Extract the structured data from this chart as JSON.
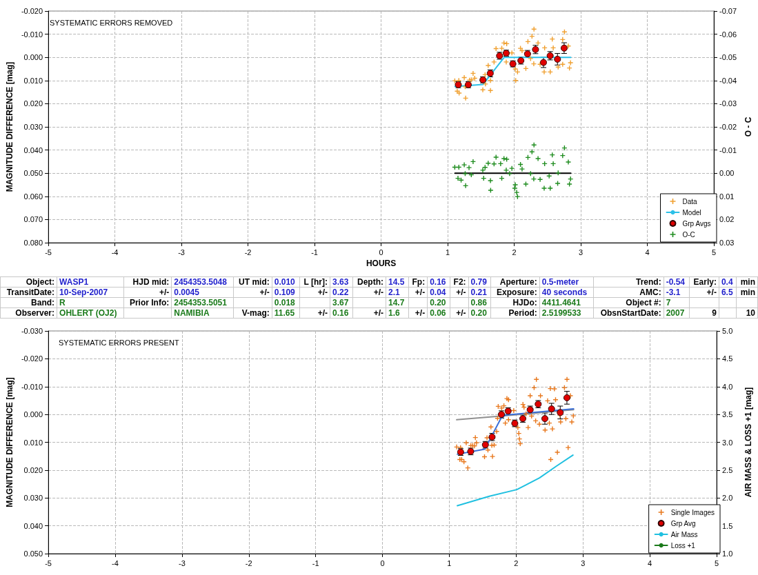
{
  "chart_data": [
    {
      "type": "scatter",
      "title": "SYSTEMATIC ERRORS REMOVED",
      "xlabel": "HOURS",
      "ylabel": "MAGNITUDE DIFFERENCE [mag]",
      "y2label": "O - C",
      "xlim": [
        -5,
        5
      ],
      "xticks": [
        -5,
        -4,
        -3,
        -2,
        -1,
        0,
        1,
        2,
        3,
        4,
        5
      ],
      "ylim": [
        0.08,
        -0.02
      ],
      "yticks": [
        {
          "value": -0.02,
          "label": "-0.020"
        },
        {
          "value": -0.01,
          "label": "-0.010"
        },
        {
          "value": 0,
          "label": "0.000"
        },
        {
          "value": 0.01,
          "label": "0.010"
        },
        {
          "value": 0.02,
          "label": "0.020"
        },
        {
          "value": 0.03,
          "label": "0.030"
        },
        {
          "value": 0.04,
          "label": "0.040"
        },
        {
          "value": 0.05,
          "label": "0.050"
        },
        {
          "value": 0.06,
          "label": "0.060"
        },
        {
          "value": 0.07,
          "label": "0.070"
        },
        {
          "value": 0.08,
          "label": "0.080"
        }
      ],
      "y2lim": [
        0.03,
        -0.07
      ],
      "y2ticks": [
        -0.07,
        -0.06,
        -0.05,
        -0.04,
        -0.03,
        -0.02,
        -0.01,
        {
          "value": 0,
          "label": "0.00"
        },
        0.01,
        0.02,
        0.03
      ],
      "grid": true,
      "legend": "bottom right",
      "series": [
        {
          "name": "Data",
          "type": "scatter",
          "marker": "cross",
          "color": "#f0a030",
          "x": [
            1.107,
            1.168,
            1.249,
            1.328,
            1.382,
            1.406,
            1.355,
            1.144,
            1.172,
            1.27,
            1.263,
            1.528,
            1.562,
            1.568,
            1.609,
            1.643,
            1.643,
            1.697,
            1.727,
            1.813,
            1.846,
            1.887,
            1.88,
            1.965,
            2.016,
            2.05,
            2.022,
            2.094,
            2.118,
            2.175,
            2.206,
            2.246,
            2.267,
            2.297,
            2.358,
            2.294,
            2.389,
            2.457,
            2.45,
            2.541,
            2.572,
            2.586,
            2.66,
            2.728,
            2.755,
            2.813,
            2.846,
            2.83,
            2.728
          ],
          "values": [
            0.0101,
            0.01,
            0.0087,
            0.0098,
            0.0069,
            0.009,
            0.0097,
            0.0146,
            0.0154,
            0.0176,
            0.0127,
            0.014,
            0.0075,
            0.0115,
            0.0035,
            0.01,
            0.0143,
            0.002,
            -0.0038,
            -0.0039,
            -0.0062,
            -0.0059,
            0.002,
            -0.0019,
            0.005,
            0.0063,
            0.01,
            -0.0039,
            -0.0029,
            0.0048,
            -0.0068,
            0.0005,
            -0.0091,
            -0.0122,
            -0.0062,
            0.0028,
            0.003,
            -0.0041,
            0.0063,
            0.0063,
            -0.0079,
            -0.0041,
            0.0042,
            -0.0077,
            -0.011,
            -0.0049,
            0.0023,
            0.0046,
            0.003
          ]
        },
        {
          "name": "Model",
          "type": "line",
          "marker": "none",
          "color": "#2cc0e8",
          "x": [
            1.11,
            1.53,
            1.85,
            2.85
          ],
          "values": [
            0.0126,
            0.0117,
            0.0,
            0.0
          ]
        },
        {
          "name": "Grp Avgs",
          "type": "scatter",
          "marker": "circle",
          "color": "#e00000",
          "x": [
            1.16,
            1.31,
            1.53,
            1.64,
            1.78,
            1.88,
            1.98,
            2.1,
            2.2,
            2.32,
            2.44,
            2.54,
            2.65,
            2.75
          ],
          "values": [
            0.0118,
            0.0118,
            0.0097,
            0.0069,
            -0.0007,
            -0.0018,
            0.0028,
            0.0014,
            -0.0015,
            -0.0034,
            0.0022,
            -0.0007,
            0.0008,
            -0.004
          ],
          "errors": [
            0.0013,
            0.0013,
            0.0013,
            0.0015,
            0.0015,
            0.0013,
            0.0013,
            0.0015,
            0.0015,
            0.0018,
            0.0022,
            0.0018,
            0.0025,
            0.0023
          ]
        },
        {
          "name": "O-C",
          "type": "scatter",
          "marker": "cross",
          "axis": "y2",
          "color": "#1e8c1e",
          "x": [
            1.107,
            1.168,
            1.249,
            1.155,
            1.202,
            1.27,
            1.263,
            1.321,
            1.382,
            1.355,
            1.528,
            1.541,
            1.562,
            1.609,
            1.643,
            1.646,
            1.697,
            1.727,
            1.796,
            1.813,
            1.846,
            1.887,
            1.88,
            1.931,
            1.965,
            2.016,
            2.009,
            2.037,
            2.05,
            2.094,
            2.118,
            2.175,
            2.206,
            2.246,
            2.267,
            2.297,
            2.358,
            2.294,
            2.389,
            2.457,
            2.45,
            2.541,
            2.572,
            2.586,
            2.66,
            2.728,
            2.755,
            2.813,
            2.846,
            2.83,
            2.653,
            2.525
          ],
          "values": [
            -0.0026,
            -0.0026,
            -0.0036,
            0.0022,
            0.003,
            0.0054,
            0.0002,
            -0.0024,
            -0.005,
            0.0007,
            -0.0013,
            0.0022,
            -0.0025,
            -0.0043,
            0.0032,
            0.0074,
            -0.004,
            -0.0069,
            -0.0041,
            0.0022,
            -0.0063,
            -0.006,
            -0.0013,
            0.0002,
            -0.0021,
            0.005,
            0.0065,
            0.0083,
            0.0101,
            -0.0038,
            -0.0018,
            0.0047,
            -0.0068,
            0.0002,
            -0.0092,
            -0.0122,
            -0.0063,
            0.0025,
            0.0027,
            -0.0041,
            0.0065,
            0.0065,
            -0.0079,
            -0.0041,
            -0.0001,
            -0.0076,
            -0.0109,
            -0.0048,
            0.0025,
            0.0047,
            0.0044,
            0.0012
          ]
        },
        {
          "type": "line",
          "marker": "none",
          "axis": "y2",
          "color": "#000000",
          "x": [
            1.11,
            2.85
          ],
          "values": [
            0,
            0
          ]
        }
      ]
    },
    {
      "type": "other",
      "colors": [
        "#1f1fcc",
        "#1f1fcc",
        "#1a7a1a",
        "#1a7a1a"
      ],
      "cell_labels": [
        [
          "Object:",
          "WASP1",
          "HJD mid:",
          "2454353.5048",
          "UT mid:",
          "0.010",
          "L [hr]:",
          "3.63",
          "Depth:",
          "14.5",
          "Fp:",
          "0.16",
          "F2:",
          "0.79",
          "Aperture:",
          "0.5-meter",
          "Trend:",
          "-0.54",
          "Early:",
          "0.4",
          "min"
        ],
        [
          "TransitDate:",
          "10-Sep-2007",
          "+/-",
          "0.0045",
          "+/-",
          "0.109",
          "+/-",
          "0.22",
          "+/-",
          "2.1",
          "+/-",
          "0.04",
          "+/-",
          "0.21",
          "Exposure:",
          "40 seconds",
          "AMC:",
          "-3.1",
          "+/-",
          "6.5",
          "min"
        ],
        [
          "Band:",
          "R",
          "Prior Info:",
          "2454353.5051",
          null,
          "0.018",
          null,
          "3.67",
          null,
          "14.7",
          null,
          "0.20",
          null,
          "0.86",
          "HJDo:",
          "4411.4641",
          "Object #:",
          "7",
          null,
          null,
          null
        ],
        [
          "Observer:",
          "OHLERT (OJ2)",
          null,
          "NAMIBIA",
          "V-mag:",
          "11.65",
          "+/-",
          "0.16",
          "+/-",
          "1.6",
          "+/-",
          "0.06",
          "+/-",
          "0.20",
          "Period:",
          "2.5199533",
          "ObsnStartDate:",
          "2007",
          "9",
          null,
          "10"
        ]
      ]
    },
    {
      "type": "scatter",
      "title": "SYSTEMATIC ERRORS PRESENT",
      "ylabel": "MAGNITUDE DIFFERENCE [mag]",
      "y2label": "AIR MASS & LOSS +1 [mag]",
      "xlim": [
        -5,
        5
      ],
      "xticks": [
        -5,
        -4,
        -3,
        -2,
        -1,
        0,
        1,
        2,
        3,
        4,
        5
      ],
      "ylim": [
        0.05,
        -0.03
      ],
      "yticks": [
        {
          "value": -0.03,
          "label": "-0.030"
        },
        {
          "value": -0.02,
          "label": "-0.020"
        },
        {
          "value": -0.01,
          "label": "-0.010"
        },
        {
          "value": 0,
          "label": "0.000"
        },
        {
          "value": 0.01,
          "label": "0.010"
        },
        {
          "value": 0.02,
          "label": "0.020"
        },
        {
          "value": 0.03,
          "label": "0.030"
        },
        {
          "value": 0.04,
          "label": "0.040"
        },
        {
          "value": 0.05,
          "label": "0.050"
        }
      ],
      "y2lim": [
        1,
        5
      ],
      "y2ticks": [
        {
          "value": 1,
          "label": "1.0"
        },
        1.5,
        {
          "value": 2,
          "label": "2.0"
        },
        2.5,
        {
          "value": 3,
          "label": "3.0"
        },
        3.5,
        {
          "value": 4,
          "label": "4.0"
        },
        4.5,
        {
          "value": 5,
          "label": "5.0"
        }
      ],
      "grid": true,
      "legend": "bottom right",
      "series": [
        {
          "name": "Single Images",
          "type": "scatter",
          "marker": "cross",
          "color": "#e8781e",
          "x": [
            1.11,
            1.168,
            1.158,
            1.185,
            1.219,
            1.277,
            1.253,
            1.322,
            1.349,
            1.39,
            1.407,
            1.376,
            1.527,
            1.564,
            1.578,
            1.646,
            1.636,
            1.671,
            1.623,
            1.708,
            1.722,
            1.732,
            1.784,
            1.817,
            1.862,
            1.886,
            1.838,
            1.886,
            1.964,
            2.026,
            2.04,
            2.05,
            2.061,
            2.102,
            2.118,
            2.149,
            2.179,
            2.21,
            2.231,
            2.269,
            2.303,
            2.292,
            2.348,
            2.364,
            2.433,
            2.471,
            2.497,
            2.512,
            2.543,
            2.573,
            2.59,
            2.617,
            2.518,
            2.655,
            2.666,
            2.723,
            2.761,
            2.778,
            2.812,
            2.833,
            2.856,
            2.744
          ],
          "values": [
            0.0117,
            0.0119,
            0.0162,
            0.0162,
            0.017,
            0.0192,
            0.0102,
            0.0112,
            0.0112,
            0.0083,
            0.0102,
            0.0113,
            0.0152,
            0.0084,
            0.0128,
            0.0151,
            0.0111,
            0.011,
            0.0045,
            0.0061,
            0.0014,
            -0.0029,
            -0.0023,
            -0.0031,
            -0.0057,
            -0.0053,
            0.0031,
            0.0019,
            -0.0014,
            0.0047,
            0.0068,
            0.0088,
            0.0105,
            -0.0036,
            -0.0026,
            -0.0002,
            0.0047,
            -0.0067,
            0.0006,
            -0.0096,
            -0.0126,
            0.0023,
            0.0035,
            -0.0067,
            0.0056,
            -0.0049,
            0.0031,
            -0.0093,
            0.0052,
            -0.0092,
            -0.0053,
            0.0136,
            0.0162,
            0.0002,
            0.0027,
            -0.0096,
            -0.0126,
            0.0119,
            -0.0067,
            0.0027,
            0.0005,
            0.0015
          ]
        },
        {
          "name": "Grp Avg",
          "type": "scatter",
          "marker": "circle",
          "color": "#e00000",
          "x": [
            1.17,
            1.32,
            1.54,
            1.64,
            1.78,
            1.88,
            1.98,
            2.1,
            2.21,
            2.33,
            2.43,
            2.53,
            2.66,
            2.76
          ],
          "values": [
            0.0135,
            0.0133,
            0.0109,
            0.0081,
            0.0,
            -0.0012,
            0.0032,
            0.0015,
            -0.0017,
            -0.0037,
            0.0015,
            -0.002,
            -0.0007,
            -0.006
          ],
          "errors": [
            0.0012,
            0.0012,
            0.0012,
            0.0013,
            0.0013,
            0.0012,
            0.0012,
            0.0013,
            0.0013,
            0.0013,
            0.002,
            0.002,
            0.0023,
            0.0023
          ]
        },
        {
          "type": "line",
          "marker": "none",
          "color": "#909090",
          "x": [
            1.11,
            1.77,
            2.86
          ],
          "values": [
            0.0019,
            0.0006,
            -0.0017
          ]
        },
        {
          "type": "line",
          "marker": "none",
          "color": "#3a6fd8",
          "x": [
            1.12,
            1.53,
            1.77,
            1.84,
            2.86
          ],
          "values": [
            0.0143,
            0.0125,
            0.0015,
            0.0002,
            -0.002
          ]
        },
        {
          "name": "Air Mass",
          "type": "line",
          "marker": "none",
          "axis": "y2",
          "color": "#20c0e0",
          "x": [
            1.12,
            1.6,
            2.01,
            2.35,
            2.6,
            2.85
          ],
          "values": [
            1.86,
            2.03,
            2.15,
            2.36,
            2.57,
            2.77
          ]
        },
        {
          "name": "Loss +1",
          "type": "line",
          "marker": "none",
          "axis": "y2",
          "color": "#1a7a1a"
        }
      ]
    }
  ]
}
